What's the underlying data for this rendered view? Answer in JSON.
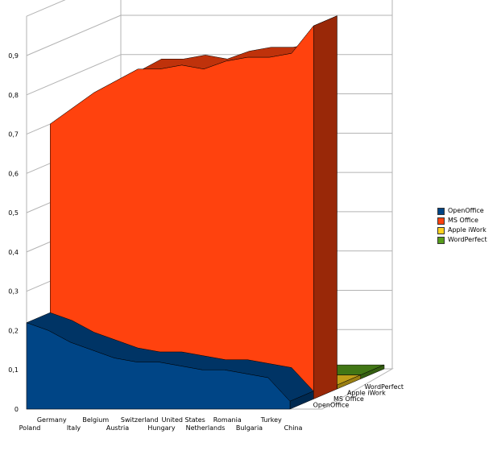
{
  "chart_data": {
    "type": "area",
    "categories": [
      "Poland",
      "Germany",
      "Italy",
      "Belgium",
      "Austria",
      "Switzerland",
      "Hungary",
      "United States",
      "Netherlands",
      "Romania",
      "Bulgaria",
      "Turkey",
      "China"
    ],
    "series": [
      {
        "name": "OpenOffice",
        "color": "#004586",
        "values": [
          0.22,
          0.2,
          0.17,
          0.15,
          0.13,
          0.12,
          0.12,
          0.11,
          0.1,
          0.1,
          0.09,
          0.08,
          0.02
        ]
      },
      {
        "name": "MS Office",
        "color": "#ff420e",
        "values": [
          0.7,
          0.74,
          0.78,
          0.81,
          0.84,
          0.84,
          0.85,
          0.84,
          0.86,
          0.87,
          0.87,
          0.88,
          0.95
        ]
      },
      {
        "name": "Apple iWork",
        "color": "#ffd320",
        "values": [
          0.01,
          0.01,
          0.01,
          0.01,
          0.01,
          0.01,
          0.01,
          0.01,
          0.01,
          0.01,
          0.01,
          0.01,
          0.01
        ]
      },
      {
        "name": "WordPerfect",
        "color": "#579d1c",
        "values": [
          0.01,
          0.01,
          0.01,
          0.01,
          0.01,
          0.01,
          0.01,
          0.01,
          0.01,
          0.01,
          0.01,
          0.01,
          0.01
        ]
      }
    ],
    "y_ticks": [
      "0",
      "0,1",
      "0,2",
      "0,3",
      "0,4",
      "0,5",
      "0,6",
      "0,7",
      "0,8",
      "0,9"
    ],
    "ylim": [
      0,
      0.9
    ],
    "depth_labels": [
      "OpenOffice",
      "MS Office",
      "Apple iWork",
      "WordPerfect"
    ],
    "legend_position": "right",
    "grid": true
  }
}
